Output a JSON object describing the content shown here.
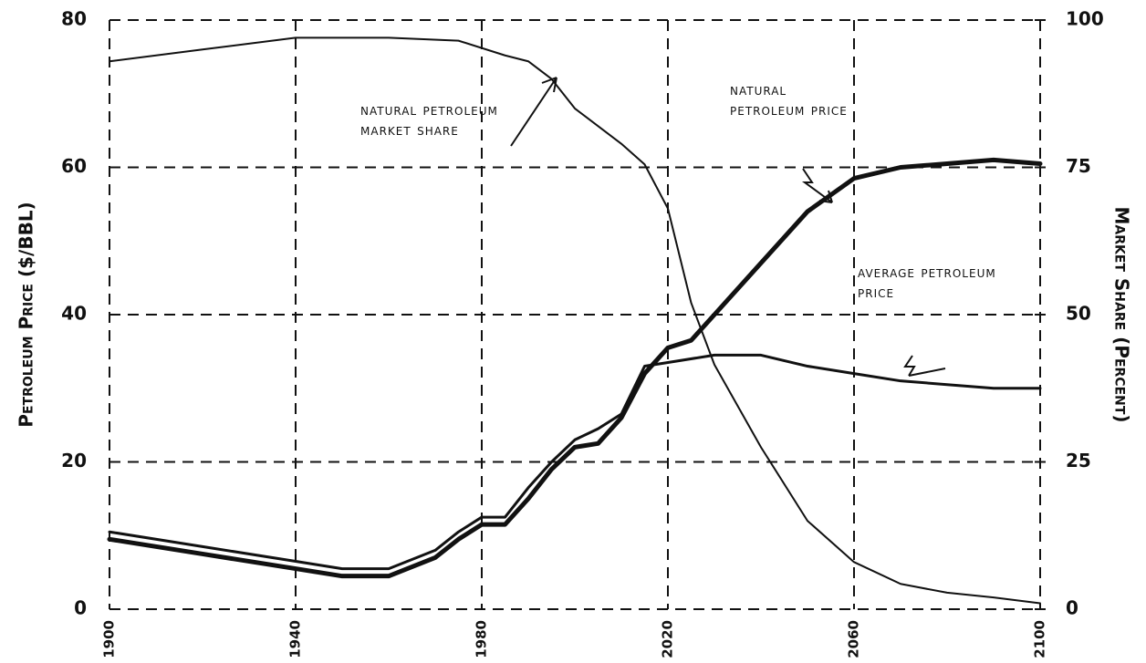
{
  "chart_data": {
    "type": "line",
    "ylabel": "Petroleum Price ($/BBL)",
    "y2label": "Market Share (Percent)",
    "xlim": [
      1900,
      2100
    ],
    "xticks": [
      1900,
      1940,
      1980,
      2020,
      2060,
      2100
    ],
    "ylim": [
      0,
      80
    ],
    "yticks": [
      0,
      20,
      40,
      60,
      80
    ],
    "y2lim": [
      0,
      100
    ],
    "y2ticks": [
      0,
      25,
      50,
      75,
      100
    ],
    "grid": true,
    "series": [
      {
        "name": "Natural Petroleum Market Share",
        "color": "#111111",
        "axis": "y2",
        "x": [
          1900,
          1920,
          1940,
          1960,
          1975,
          1985,
          1990,
          1995,
          2000,
          2010,
          2015,
          2020,
          2025,
          2030,
          2040,
          2050,
          2060,
          2070,
          2080,
          2090,
          2100
        ],
        "values": [
          93,
          95,
          97,
          97,
          96.5,
          94,
          93,
          90,
          85,
          79,
          75.5,
          68,
          52,
          41.5,
          27.5,
          15,
          8,
          4.3,
          2.8,
          2,
          1
        ]
      },
      {
        "name": "Natural Petroleum Price",
        "color": "#111111",
        "x": [
          1900,
          1920,
          1940,
          1950,
          1960,
          1970,
          1975,
          1980,
          1985,
          1990,
          1995,
          2000,
          2005,
          2010,
          2015,
          2020,
          2025,
          2030,
          2040,
          2050,
          2060,
          2070,
          2080,
          2090,
          2100
        ],
        "values": [
          9.5,
          7.5,
          5.5,
          4.5,
          4.5,
          7,
          9.5,
          11.5,
          11.5,
          15,
          19,
          22,
          22.5,
          26,
          32,
          35.5,
          36.5,
          40,
          47,
          54,
          58.5,
          60,
          60.5,
          61,
          60.5
        ]
      },
      {
        "name": "Average Petroleum Price",
        "color": "#111111",
        "x": [
          1900,
          1920,
          1940,
          1950,
          1960,
          1970,
          1975,
          1980,
          1985,
          1990,
          1995,
          2000,
          2005,
          2010,
          2015,
          2020,
          2030,
          2040,
          2050,
          2060,
          2070,
          2080,
          2090,
          2100
        ],
        "values": [
          10.5,
          8.5,
          6.5,
          5.5,
          5.5,
          8,
          10.5,
          12.5,
          12.5,
          16.5,
          20,
          23,
          24.5,
          26.5,
          33,
          33.5,
          34.5,
          34.5,
          33,
          32,
          31,
          30.5,
          30,
          30
        ]
      }
    ]
  }
}
